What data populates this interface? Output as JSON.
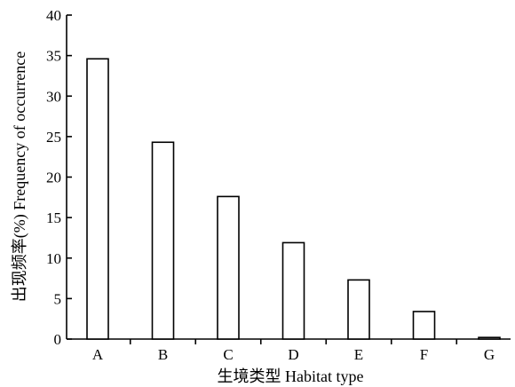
{
  "chart_data": {
    "type": "bar",
    "categories": [
      "A",
      "B",
      "C",
      "D",
      "E",
      "F",
      "G"
    ],
    "values": [
      34.6,
      24.3,
      17.6,
      11.9,
      7.3,
      3.4,
      0.2
    ],
    "title": "",
    "xlabel": "生境类型 Habitat type",
    "ylabel": "出现频率(%) Frequency of occurrence",
    "ylim": [
      0,
      40
    ],
    "yticks": [
      0,
      5,
      10,
      15,
      20,
      25,
      30,
      35,
      40
    ],
    "grid": false,
    "legend": "none",
    "bar_fill": "#ffffff",
    "bar_stroke": "#000000"
  }
}
